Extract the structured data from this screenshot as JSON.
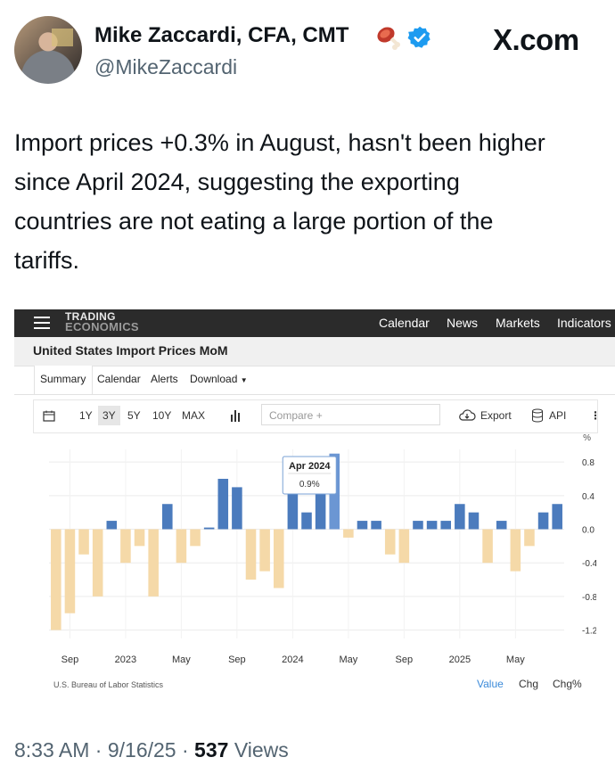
{
  "tweet": {
    "author_name": "Mike Zaccardi, CFA, CMT",
    "handle": "@MikeZaccardi",
    "brand": "X.com",
    "text": "Import prices +0.3% in August, hasn't been higher\nsince April 2024, suggesting the exporting\ncountries are not eating a large portion of the\ntariffs.",
    "footer": {
      "time": "8:33 AM",
      "sep1": "·",
      "date": "9/16/25",
      "sep2": "·",
      "views_count": "537",
      "views_label": "Views"
    }
  },
  "te": {
    "logo_line1": "TRADING",
    "logo_line2": "ECONOMICS",
    "nav": [
      "Calendar",
      "News",
      "Markets",
      "Indicators"
    ],
    "title": "United States Import Prices MoM",
    "tabs": [
      "Summary",
      "Calendar",
      "Alerts",
      "Download"
    ],
    "ranges": [
      "1Y",
      "3Y",
      "5Y",
      "10Y",
      "MAX"
    ],
    "selected_range": "3Y",
    "compare_placeholder": "Compare +",
    "export_label": "Export",
    "api_label": "API",
    "source": "U.S. Bureau of Labor Statistics",
    "value_tabs": [
      "Value",
      "Chg",
      "Chg%"
    ],
    "active_value_tab": "Value"
  },
  "chart_data": {
    "type": "bar",
    "y_unit": "%",
    "ylim": [
      -1.3,
      0.95
    ],
    "y_ticks": [
      0.8,
      0.4,
      0.0,
      -0.4,
      -0.8,
      -1.2
    ],
    "y_tick_labels": [
      "0.8",
      "0.4",
      "0.0",
      "-0.4",
      "-0.8",
      "-1.2"
    ],
    "x_tick_labels": [
      {
        "label": "Sep",
        "index": 1
      },
      {
        "label": "2023",
        "index": 5
      },
      {
        "label": "May",
        "index": 9
      },
      {
        "label": "Sep",
        "index": 13
      },
      {
        "label": "2024",
        "index": 17
      },
      {
        "label": "May",
        "index": 21
      },
      {
        "label": "Sep",
        "index": 25
      },
      {
        "label": "2025",
        "index": 29
      },
      {
        "label": "May",
        "index": 33
      }
    ],
    "categories": [
      "Aug 2022",
      "Sep 2022",
      "Oct 2022",
      "Nov 2022",
      "Dec 2022",
      "Jan 2023",
      "Feb 2023",
      "Mar 2023",
      "Apr 2023",
      "May 2023",
      "Jun 2023",
      "Jul 2023",
      "Aug 2023",
      "Sep 2023",
      "Oct 2023",
      "Nov 2023",
      "Dec 2023",
      "Jan 2024",
      "Feb 2024",
      "Mar 2024",
      "Apr 2024",
      "May 2024",
      "Jun 2024",
      "Jul 2024",
      "Aug 2024",
      "Sep 2024",
      "Oct 2024",
      "Nov 2024",
      "Dec 2024",
      "Jan 2025",
      "Feb 2025",
      "Mar 2025",
      "Apr 2025",
      "May 2025",
      "Jun 2025",
      "Jul 2025",
      "Aug 2025"
    ],
    "values": [
      -1.2,
      -1.0,
      -0.3,
      -0.8,
      0.1,
      -0.4,
      -0.2,
      -0.8,
      0.3,
      -0.4,
      -0.2,
      0.02,
      0.6,
      0.5,
      -0.6,
      -0.5,
      -0.7,
      0.8,
      0.2,
      0.6,
      0.9,
      -0.1,
      0.1,
      0.1,
      -0.3,
      -0.4,
      0.1,
      0.1,
      0.1,
      0.3,
      0.2,
      -0.4,
      0.1,
      -0.5,
      -0.2,
      0.2,
      0.3
    ],
    "tooltip": {
      "label": "Apr 2024",
      "value": "0.9%"
    },
    "highlighted_index": 20,
    "colors": {
      "positive": "#4b7bbd",
      "negative": "#f5d9a8",
      "highlight": "#6b96d3"
    },
    "grid": true
  }
}
